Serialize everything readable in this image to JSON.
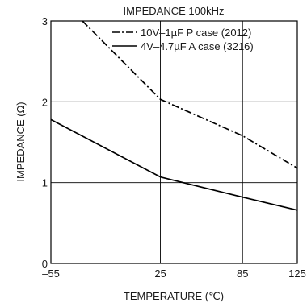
{
  "chart_data": {
    "type": "line",
    "title": "IMPEDANCE 100kHz",
    "xlabel": "TEMPERATURE (℃)",
    "ylabel": "IMPEDANCE (Ω)",
    "x_ticks": [
      "–55",
      "25",
      "85",
      "125"
    ],
    "x_tick_values": [
      -55,
      25,
      85,
      125
    ],
    "y_ticks": [
      "0",
      "1",
      "2",
      "3"
    ],
    "y_tick_values": [
      0,
      1,
      2,
      3
    ],
    "xlim": [
      -55,
      125
    ],
    "ylim": [
      0,
      3
    ],
    "grid": true,
    "legend_position": "top",
    "series": [
      {
        "name": "10V–1µF  P case  (2012)",
        "style": "dash-dot",
        "color": "#000000",
        "x": [
          -32,
          25,
          85,
          125
        ],
        "y": [
          3.0,
          2.03,
          1.58,
          1.18
        ]
      },
      {
        "name": "4V–4.7µF  A case  (3216)",
        "style": "solid",
        "color": "#000000",
        "x": [
          -55,
          25,
          85,
          125
        ],
        "y": [
          1.78,
          1.07,
          0.82,
          0.66
        ]
      }
    ]
  }
}
